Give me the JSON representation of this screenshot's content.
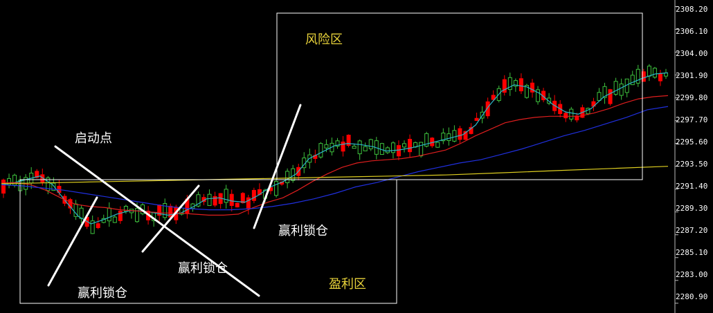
{
  "chart_data": {
    "type": "candlestick",
    "yaxis": {
      "ticks": [
        "2308.20",
        "2306.10",
        "2304.00",
        "2301.90",
        "2299.80",
        "2297.70",
        "2295.60",
        "2293.50",
        "2291.40",
        "2289.30",
        "2287.20",
        "2285.10",
        "2283.00",
        "2280.90"
      ],
      "range": [
        2280.0,
        2308.8
      ]
    },
    "annotations": {
      "start_point": "启动点",
      "profit_lock_1": "赢利锁仓",
      "profit_lock_2": "赢利锁仓",
      "profit_lock_3": "赢利锁仓",
      "risk_zone": "风险区",
      "profit_zone": "盈利区"
    },
    "colors": {
      "background": "#000000",
      "bull_candle": "#3ec23e",
      "bear_candle": "#ff0000",
      "ma_fast": "#2ab7c9",
      "ma_mid": "#e01e1e",
      "ma_slow": "#2030e0",
      "ma_long": "#e0d020",
      "annotation_lines": "#ffffff",
      "zone_text": "#e8d23a",
      "label_text": "#ffffff"
    },
    "series": [
      {
        "values": [
          2291.8,
          2292.0,
          2292.3,
          2292.6,
          2291.8,
          2290.3,
          2288.9,
          2288.2,
          2288.6,
          2289.1,
          2289.4,
          2289.4,
          2289.2,
          2289.0,
          2289.2,
          2289.8,
          2290.5,
          2290.6,
          2290.3,
          2290.2,
          2290.8,
          2291.6,
          2292.1,
          2292.8,
          2294.2,
          2294.8,
          2295.4,
          2295.6,
          2295.5,
          2295.3,
          2294.9,
          2295.0,
          2295.2,
          2295.5,
          2295.8,
          2296.1,
          2296.4,
          2297.3,
          2299.0,
          2300.4,
          2301.0,
          2300.8,
          2300.2,
          2299.2,
          2298.5,
          2298.3,
          2298.8,
          2299.9,
          2300.5,
          2301.1,
          2301.6,
          2302.0,
          2302.1
        ]
      },
      {
        "values": [
          2292.0,
          2292.0,
          2291.8,
          2291.3,
          2290.6,
          2290.0,
          2289.8,
          2289.7,
          2289.5,
          2289.4,
          2289.3,
          2289.2,
          2289.2,
          2289.1,
          2289.0,
          2289.0,
          2289.1,
          2289.7,
          2290.2,
          2290.6,
          2291.3,
          2292.1,
          2292.8,
          2293.4,
          2293.8,
          2294.0,
          2294.1,
          2294.2,
          2294.4,
          2294.7,
          2295.0,
          2295.6,
          2296.3,
          2296.9,
          2297.5,
          2297.8,
          2298.0,
          2298.1,
          2298.1,
          2298.1,
          2298.4,
          2298.8,
          2299.3,
          2299.7,
          2299.9,
          2300.0
        ]
      },
      {
        "values": [
          2291.8,
          2291.7,
          2291.5,
          2291.3,
          2291.0,
          2290.7,
          2290.4,
          2290.1,
          2289.8,
          2289.6,
          2289.5,
          2289.5,
          2289.6,
          2289.8,
          2290.1,
          2290.5,
          2291.0,
          2291.6,
          2292.0,
          2292.5,
          2293.0,
          2293.4,
          2293.8,
          2294.1,
          2294.6,
          2295.1,
          2295.7,
          2296.3,
          2296.8,
          2297.4,
          2298.0,
          2298.7,
          2299.0
        ]
      },
      {
        "values": [
          2291.9,
          2292.0,
          2292.1,
          2292.2,
          2292.3,
          2292.4,
          2292.5,
          2292.6,
          2292.7,
          2292.9,
          2293.1,
          2293.3,
          2293.5
        ]
      }
    ]
  }
}
